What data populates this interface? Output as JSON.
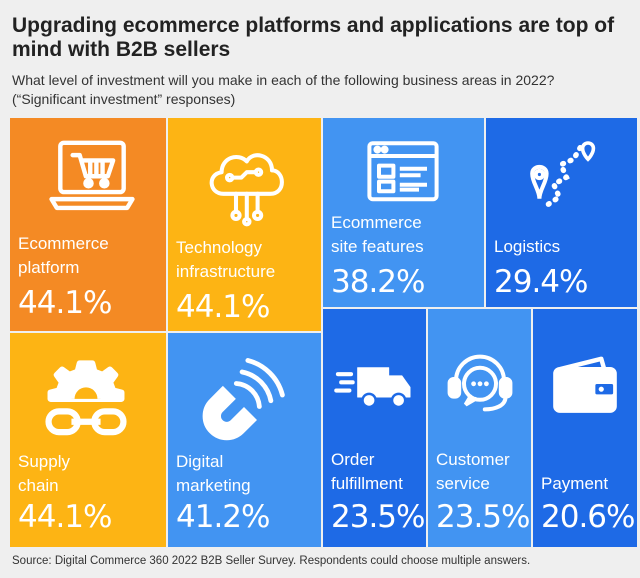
{
  "header": {
    "title": "Upgrading ecommerce platforms and applications are top of mind with B2B sellers",
    "subtitle": "What level of investment will you make in each of the following business areas in 2022? (“Significant investment” responses)"
  },
  "chart_data": {
    "type": "table",
    "title": "Upgrading ecommerce platforms and applications are top of mind with B2B sellers",
    "subtitle": "What level of investment will you make in each of the following business areas in 2022? (“Significant investment” responses)",
    "unit": "%",
    "categories": [
      "Ecommerce platform",
      "Technology infrastructure",
      "Ecommerce site features",
      "Logistics",
      "Supply chain",
      "Digital marketing",
      "Order fulfillment",
      "Customer service",
      "Payment"
    ],
    "values": [
      44.1,
      44.1,
      38.2,
      29.4,
      44.1,
      41.2,
      23.5,
      23.5,
      20.6
    ],
    "tiles": [
      {
        "label1": "Ecommerce",
        "label2": "platform",
        "value_text": "44.1%",
        "value": 44.1,
        "color": "#f48a24",
        "icon": "laptop-cart-icon"
      },
      {
        "label1": "Technology",
        "label2": "infrastructure",
        "value_text": "44.1%",
        "value": 44.1,
        "color": "#fdb414",
        "icon": "cloud-circuit-icon"
      },
      {
        "label1": "Ecommerce",
        "label2": "site features",
        "value_text": "38.2%",
        "value": 38.2,
        "color": "#4294f2",
        "icon": "browser-window-icon"
      },
      {
        "label1": "Logistics",
        "label2": "",
        "value_text": "29.4%",
        "value": 29.4,
        "color": "#1e6ae6",
        "icon": "map-route-icon"
      },
      {
        "label1": "Supply",
        "label2": "chain",
        "value_text": "44.1%",
        "value": 44.1,
        "color": "#fdb414",
        "icon": "gear-chain-icon"
      },
      {
        "label1": "Digital",
        "label2": "marketing",
        "value_text": "41.2%",
        "value": 41.2,
        "color": "#4294f2",
        "icon": "magnet-icon"
      },
      {
        "label1": "Order",
        "label2": "fulfillment",
        "value_text": "23.5%",
        "value": 23.5,
        "color": "#1e6ae6",
        "icon": "delivery-truck-icon"
      },
      {
        "label1": "Customer",
        "label2": "service",
        "value_text": "23.5%",
        "value": 23.5,
        "color": "#4294f2",
        "icon": "headset-icon"
      },
      {
        "label1": "Payment",
        "label2": "",
        "value_text": "20.6%",
        "value": 20.6,
        "color": "#1e6ae6",
        "icon": "wallet-icon"
      }
    ]
  },
  "footer": {
    "source": "Source: Digital Commerce 360 2022 B2B Seller Survey. Respondents could choose multiple answers."
  }
}
